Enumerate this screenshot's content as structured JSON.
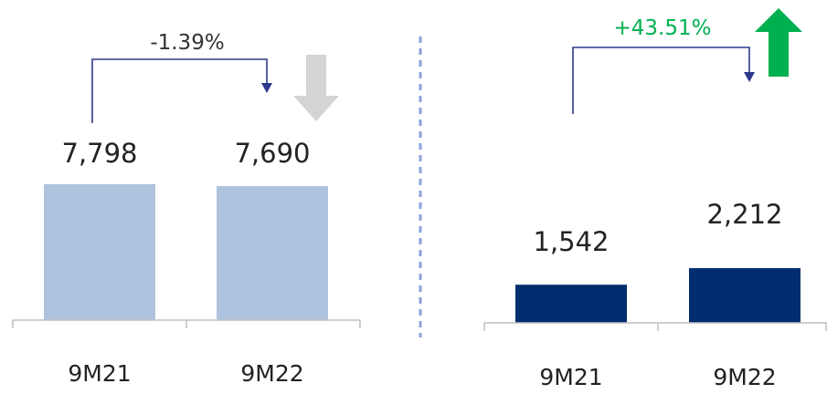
{
  "chart_data": [
    {
      "type": "bar",
      "categories": [
        "9M21",
        "9M22"
      ],
      "values": [
        7798,
        7690
      ],
      "value_labels": [
        "7,798",
        "7,690"
      ],
      "change_label": "-1.39%",
      "trend": "down",
      "colors": {
        "bar": "#adc3de",
        "arrow": "#d4d4d4",
        "bracket": "#2d3a8c",
        "change_text": "#333333"
      }
    },
    {
      "type": "bar",
      "categories": [
        "9M21",
        "9M22"
      ],
      "values": [
        1542,
        2212
      ],
      "value_labels": [
        "1,542",
        "2,212"
      ],
      "change_label": "+43.51%",
      "trend": "up",
      "colors": {
        "bar": "#002d6e",
        "arrow": "#00b050",
        "bracket": "#2d3a8c",
        "change_text": "#00b050"
      }
    }
  ],
  "colors": {
    "divider": "#8ea2dd",
    "axis": "#bfbfbf",
    "label_text": "#222222"
  }
}
